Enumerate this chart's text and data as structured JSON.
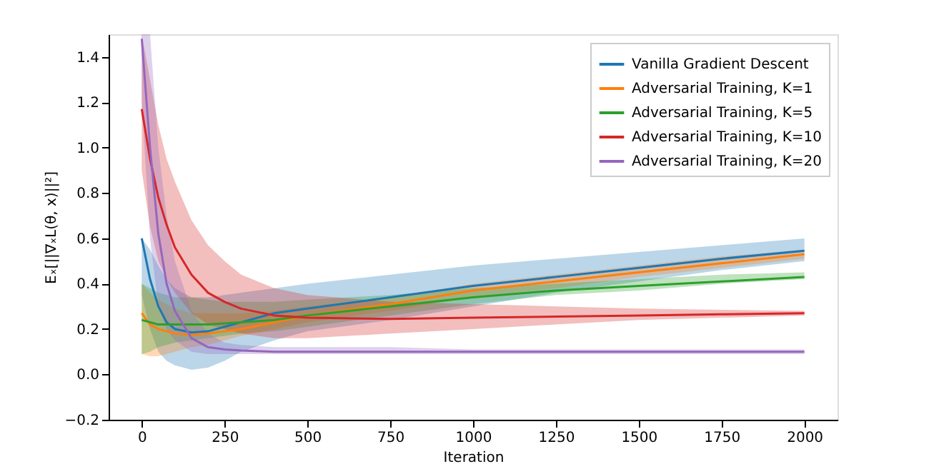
{
  "chart_data": {
    "type": "line",
    "xlabel": "Iteration",
    "ylabel": "Eₓ[||∇ₓL(θ, x)||²]",
    "xlim": [
      -100,
      2100
    ],
    "ylim": [
      -0.2,
      1.5
    ],
    "xticks": [
      0,
      250,
      500,
      750,
      1000,
      1250,
      1500,
      1750,
      2000
    ],
    "yticks": [
      {
        "value": -0.2,
        "label": "−0.2"
      },
      {
        "value": 0,
        "label": "0.0"
      },
      {
        "value": 0.2,
        "label": "0.2"
      },
      {
        "value": 0.4,
        "label": "0.4"
      },
      {
        "value": 0.6,
        "label": "0.6"
      },
      {
        "value": 0.8,
        "label": "0.8"
      },
      {
        "value": 1,
        "label": "1.0"
      },
      {
        "value": 1.2,
        "label": "1.2"
      },
      {
        "value": 1.4,
        "label": "1.4"
      }
    ],
    "grid": false,
    "legend": "top right",
    "line_style": "solid",
    "marker": "none",
    "x": [
      0,
      25,
      50,
      75,
      100,
      150,
      200,
      250,
      300,
      400,
      500,
      750,
      1000,
      1250,
      1500,
      1750,
      2000
    ],
    "series": [
      {
        "name": "Vanilla Gradient Descent",
        "color": "#1f77b4",
        "values": [
          0.6,
          0.42,
          0.3,
          0.23,
          0.2,
          0.185,
          0.19,
          0.21,
          0.23,
          0.27,
          0.29,
          0.34,
          0.39,
          0.43,
          0.47,
          0.51,
          0.545
        ],
        "lower": [
          0.35,
          0.2,
          0.1,
          0.06,
          0.04,
          0.02,
          0.03,
          0.06,
          0.1,
          0.15,
          0.19,
          0.24,
          0.3,
          0.36,
          0.41,
          0.46,
          0.5
        ],
        "upper": [
          0.6,
          0.55,
          0.48,
          0.42,
          0.38,
          0.34,
          0.34,
          0.35,
          0.36,
          0.38,
          0.4,
          0.44,
          0.48,
          0.51,
          0.54,
          0.57,
          0.6
        ]
      },
      {
        "name": "Adversarial Training, K=1",
        "color": "#ff7f0e",
        "values": [
          0.27,
          0.22,
          0.2,
          0.19,
          0.18,
          0.175,
          0.18,
          0.19,
          0.2,
          0.23,
          0.26,
          0.31,
          0.37,
          0.41,
          0.45,
          0.49,
          0.53
        ],
        "lower": [
          0.09,
          0.08,
          0.08,
          0.09,
          0.1,
          0.12,
          0.13,
          0.15,
          0.17,
          0.2,
          0.23,
          0.28,
          0.34,
          0.38,
          0.43,
          0.47,
          0.51
        ],
        "upper": [
          0.4,
          0.36,
          0.33,
          0.31,
          0.29,
          0.27,
          0.27,
          0.27,
          0.27,
          0.28,
          0.3,
          0.34,
          0.4,
          0.44,
          0.48,
          0.52,
          0.55
        ]
      },
      {
        "name": "Adversarial Training, K=5",
        "color": "#2ca02c",
        "values": [
          0.24,
          0.23,
          0.22,
          0.22,
          0.22,
          0.22,
          0.22,
          0.225,
          0.23,
          0.24,
          0.26,
          0.3,
          0.34,
          0.37,
          0.39,
          0.41,
          0.43
        ],
        "lower": [
          0.09,
          0.1,
          0.12,
          0.13,
          0.14,
          0.15,
          0.16,
          0.17,
          0.18,
          0.19,
          0.21,
          0.26,
          0.31,
          0.35,
          0.37,
          0.4,
          0.42
        ],
        "upper": [
          0.4,
          0.38,
          0.36,
          0.35,
          0.34,
          0.34,
          0.33,
          0.32,
          0.32,
          0.32,
          0.33,
          0.35,
          0.38,
          0.4,
          0.42,
          0.44,
          0.45
        ]
      },
      {
        "name": "Adversarial Training, K=10",
        "color": "#d62728",
        "values": [
          1.17,
          0.95,
          0.78,
          0.66,
          0.56,
          0.44,
          0.36,
          0.32,
          0.29,
          0.26,
          0.25,
          0.245,
          0.25,
          0.255,
          0.26,
          0.265,
          0.27
        ],
        "lower": [
          0.9,
          0.65,
          0.5,
          0.42,
          0.36,
          0.27,
          0.22,
          0.2,
          0.18,
          0.16,
          0.16,
          0.18,
          0.2,
          0.22,
          0.24,
          0.25,
          0.26
        ],
        "upper": [
          1.5,
          1.3,
          1.1,
          0.95,
          0.85,
          0.68,
          0.57,
          0.5,
          0.44,
          0.38,
          0.35,
          0.32,
          0.31,
          0.3,
          0.29,
          0.285,
          0.28
        ]
      },
      {
        "name": "Adversarial Training, K=20",
        "color": "#9467bd",
        "values": [
          1.48,
          1.0,
          0.62,
          0.4,
          0.28,
          0.16,
          0.12,
          0.11,
          0.105,
          0.1,
          0.1,
          0.1,
          0.1,
          0.1,
          0.1,
          0.1,
          0.1
        ],
        "lower": [
          1.2,
          0.6,
          0.3,
          0.2,
          0.15,
          0.1,
          0.09,
          0.09,
          0.09,
          0.09,
          0.09,
          0.09,
          0.09,
          0.09,
          0.09,
          0.09,
          0.09
        ],
        "upper": [
          1.5,
          1.5,
          1.0,
          0.7,
          0.5,
          0.28,
          0.18,
          0.14,
          0.13,
          0.12,
          0.12,
          0.12,
          0.11,
          0.11,
          0.11,
          0.11,
          0.11
        ]
      }
    ]
  }
}
